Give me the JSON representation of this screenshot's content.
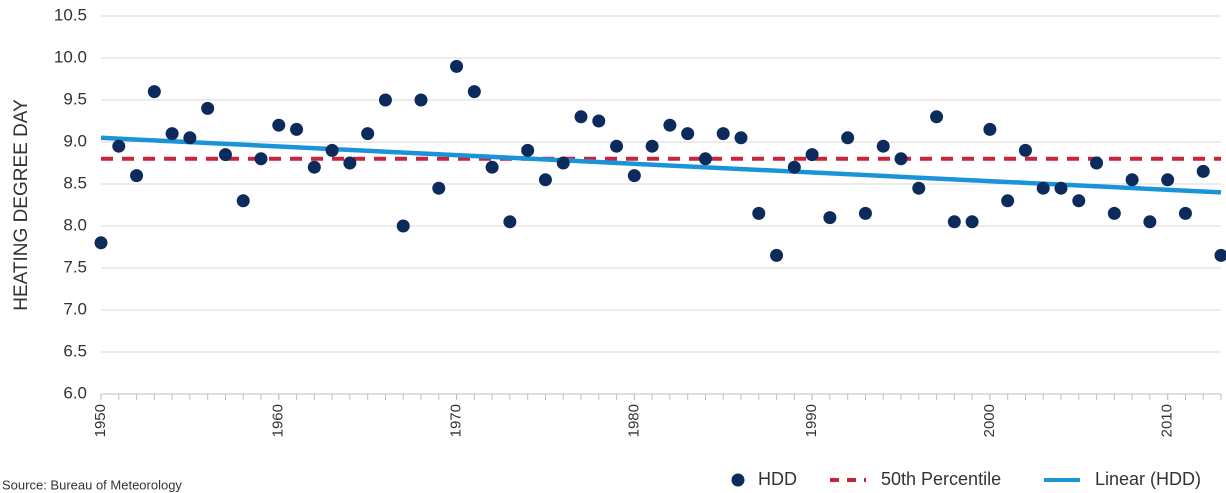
{
  "chart_data": {
    "type": "scatter",
    "y_label": "HEATING DEGREE DAY",
    "source": "Source: Bureau of Meteorology",
    "x": [
      1950,
      1951,
      1952,
      1953,
      1954,
      1955,
      1956,
      1957,
      1958,
      1959,
      1960,
      1961,
      1962,
      1963,
      1964,
      1965,
      1966,
      1967,
      1968,
      1969,
      1970,
      1971,
      1972,
      1973,
      1974,
      1975,
      1976,
      1977,
      1978,
      1979,
      1980,
      1981,
      1982,
      1983,
      1984,
      1985,
      1986,
      1987,
      1988,
      1989,
      1990,
      1991,
      1992,
      1993,
      1994,
      1995,
      1996,
      1997,
      1998,
      1999,
      2000,
      2001,
      2002,
      2003,
      2004,
      2005,
      2006,
      2007,
      2008,
      2009,
      2010,
      2011,
      2012,
      2013
    ],
    "series": [
      {
        "name": "HDD",
        "color": "#0c2a5b",
        "kind": "points",
        "values": [
          7.8,
          8.95,
          8.6,
          9.6,
          9.1,
          9.05,
          9.4,
          8.85,
          8.3,
          8.8,
          9.2,
          9.15,
          8.7,
          8.9,
          8.75,
          9.1,
          9.5,
          8.0,
          9.5,
          8.45,
          9.9,
          9.6,
          8.7,
          8.05,
          8.9,
          8.55,
          8.75,
          9.3,
          9.25,
          8.95,
          8.6,
          8.95,
          9.2,
          9.1,
          8.8,
          9.1,
          9.05,
          8.15,
          7.65,
          8.7,
          8.85,
          8.1,
          9.05,
          8.15,
          8.95,
          8.8,
          8.45,
          9.3,
          8.05,
          8.05,
          9.15,
          8.3,
          8.9,
          8.45,
          8.45,
          8.3,
          8.75,
          8.15,
          8.55,
          8.05,
          8.55,
          8.15,
          8.65,
          7.65
        ]
      },
      {
        "name": "50th Percentile",
        "color": "#c8243c",
        "kind": "dashed",
        "x": [
          1950,
          2013
        ],
        "values": [
          8.8,
          8.8
        ]
      },
      {
        "name": "Linear (HDD)",
        "color": "#1a94d8",
        "kind": "line",
        "x": [
          1950,
          2013
        ],
        "values": [
          9.05,
          8.4
        ]
      }
    ],
    "xlim": [
      1950,
      2013
    ],
    "xticks": [
      1950,
      1960,
      1970,
      1980,
      1990,
      2000,
      2010
    ],
    "ylim": [
      6.0,
      10.5
    ],
    "yticks": [
      {
        "value": 6,
        "label": "6.0"
      },
      6.5,
      {
        "value": 7,
        "label": "7.0"
      },
      7.5,
      {
        "value": 8,
        "label": "8.0"
      },
      8.5,
      {
        "value": 9,
        "label": "9.0"
      },
      9.5,
      {
        "value": 10,
        "label": "10.0"
      },
      10.5
    ],
    "grid": true,
    "legend": "bottom-right"
  }
}
